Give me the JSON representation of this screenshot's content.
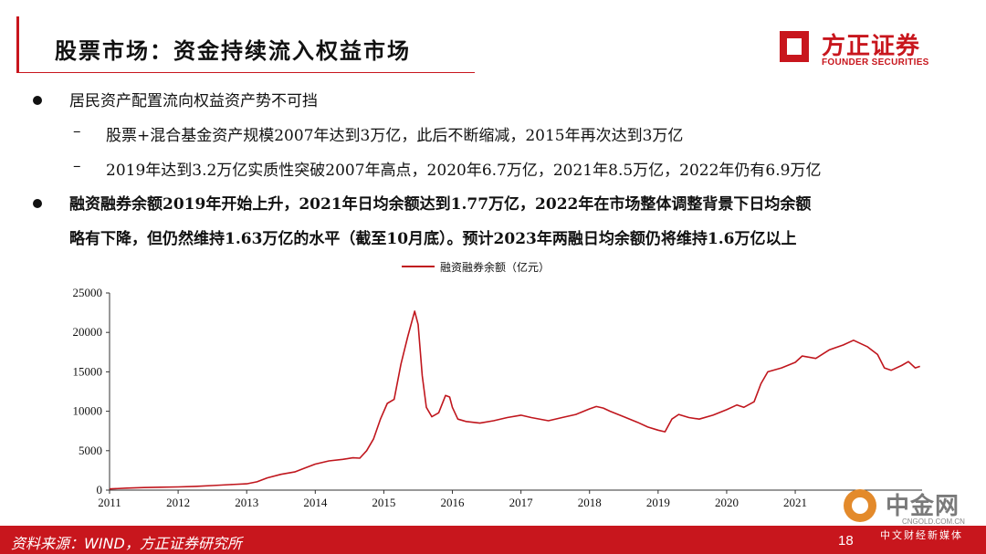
{
  "title": "股票市场：资金持续流入权益市场",
  "logo": {
    "cn": "方正证券",
    "en": "FOUNDER SECURITIES"
  },
  "bullets": {
    "b1": "居民资产配置流向权益资产势不可挡",
    "s1": "股票+混合基金资产规模2007年达到3万亿，此后不断缩减，2015年再次达到3万亿",
    "s2": "2019年达到3.2万亿实质性突破2007年高点，2020年6.7万亿，2021年8.5万亿，2022年仍有6.9万亿",
    "b2_line1": "融资融券余额2019年开始上升，2021年日均余额达到1.77万亿，2022年在市场整体调整背景下日均余额",
    "b2_line2": "略有下降，但仍然维持1.63万亿的水平（截至10月底）。预计2023年两融日均余额仍将维持1.6万亿以上"
  },
  "footer": {
    "source": "资料来源：WIND，方正证券研究所",
    "page": "18"
  },
  "watermark": {
    "cn": "中金网",
    "url": "CNGOLD.COM.CN",
    "sub": "中文财经新媒体"
  },
  "colors": {
    "brand": "#c8161d",
    "line": "#c0161d"
  },
  "chart_data": {
    "type": "line",
    "title": "",
    "xlabel": "",
    "ylabel": "",
    "legend_position": "top-center",
    "grid": false,
    "xlim": [
      2011,
      2022.85
    ],
    "ylim": [
      0,
      25000
    ],
    "x_ticks": [
      "2011",
      "2012",
      "2013",
      "2014",
      "2015",
      "2016",
      "2017",
      "2018",
      "2019",
      "2020",
      "2021"
    ],
    "y_ticks": [
      "0",
      "5000",
      "10000",
      "15000",
      "20000",
      "25000"
    ],
    "series": [
      {
        "name": "融资融券余额（亿元）",
        "points": [
          [
            2011.0,
            150
          ],
          [
            2011.25,
            250
          ],
          [
            2011.5,
            320
          ],
          [
            2011.75,
            370
          ],
          [
            2012.0,
            400
          ],
          [
            2012.25,
            480
          ],
          [
            2012.5,
            580
          ],
          [
            2012.75,
            700
          ],
          [
            2013.0,
            800
          ],
          [
            2013.15,
            1050
          ],
          [
            2013.3,
            1550
          ],
          [
            2013.5,
            2000
          ],
          [
            2013.7,
            2300
          ],
          [
            2013.85,
            2800
          ],
          [
            2014.0,
            3300
          ],
          [
            2014.2,
            3700
          ],
          [
            2014.4,
            3900
          ],
          [
            2014.55,
            4100
          ],
          [
            2014.65,
            4050
          ],
          [
            2014.75,
            5000
          ],
          [
            2014.85,
            6500
          ],
          [
            2014.95,
            9000
          ],
          [
            2015.05,
            11000
          ],
          [
            2015.15,
            11500
          ],
          [
            2015.25,
            16000
          ],
          [
            2015.35,
            19500
          ],
          [
            2015.45,
            22700
          ],
          [
            2015.5,
            21000
          ],
          [
            2015.56,
            14500
          ],
          [
            2015.62,
            10500
          ],
          [
            2015.7,
            9300
          ],
          [
            2015.8,
            9800
          ],
          [
            2015.9,
            12000
          ],
          [
            2015.96,
            11800
          ],
          [
            2016.0,
            10500
          ],
          [
            2016.08,
            9000
          ],
          [
            2016.2,
            8700
          ],
          [
            2016.4,
            8500
          ],
          [
            2016.6,
            8800
          ],
          [
            2016.8,
            9200
          ],
          [
            2017.0,
            9500
          ],
          [
            2017.15,
            9200
          ],
          [
            2017.4,
            8800
          ],
          [
            2017.6,
            9200
          ],
          [
            2017.8,
            9600
          ],
          [
            2018.0,
            10300
          ],
          [
            2018.1,
            10600
          ],
          [
            2018.2,
            10400
          ],
          [
            2018.3,
            10000
          ],
          [
            2018.5,
            9300
          ],
          [
            2018.7,
            8600
          ],
          [
            2018.85,
            8000
          ],
          [
            2019.0,
            7600
          ],
          [
            2019.1,
            7400
          ],
          [
            2019.2,
            9000
          ],
          [
            2019.3,
            9600
          ],
          [
            2019.45,
            9200
          ],
          [
            2019.6,
            9000
          ],
          [
            2019.8,
            9500
          ],
          [
            2020.0,
            10200
          ],
          [
            2020.15,
            10800
          ],
          [
            2020.25,
            10500
          ],
          [
            2020.4,
            11200
          ],
          [
            2020.5,
            13500
          ],
          [
            2020.6,
            15000
          ],
          [
            2020.8,
            15500
          ],
          [
            2021.0,
            16200
          ],
          [
            2021.1,
            17000
          ],
          [
            2021.3,
            16700
          ],
          [
            2021.5,
            17800
          ],
          [
            2021.7,
            18400
          ],
          [
            2021.85,
            19000
          ],
          [
            2021.95,
            18600
          ],
          [
            2022.05,
            18200
          ],
          [
            2022.2,
            17200
          ],
          [
            2022.3,
            15500
          ],
          [
            2022.4,
            15200
          ],
          [
            2022.55,
            15800
          ],
          [
            2022.65,
            16300
          ],
          [
            2022.75,
            15500
          ],
          [
            2022.82,
            15700
          ]
        ]
      }
    ]
  }
}
